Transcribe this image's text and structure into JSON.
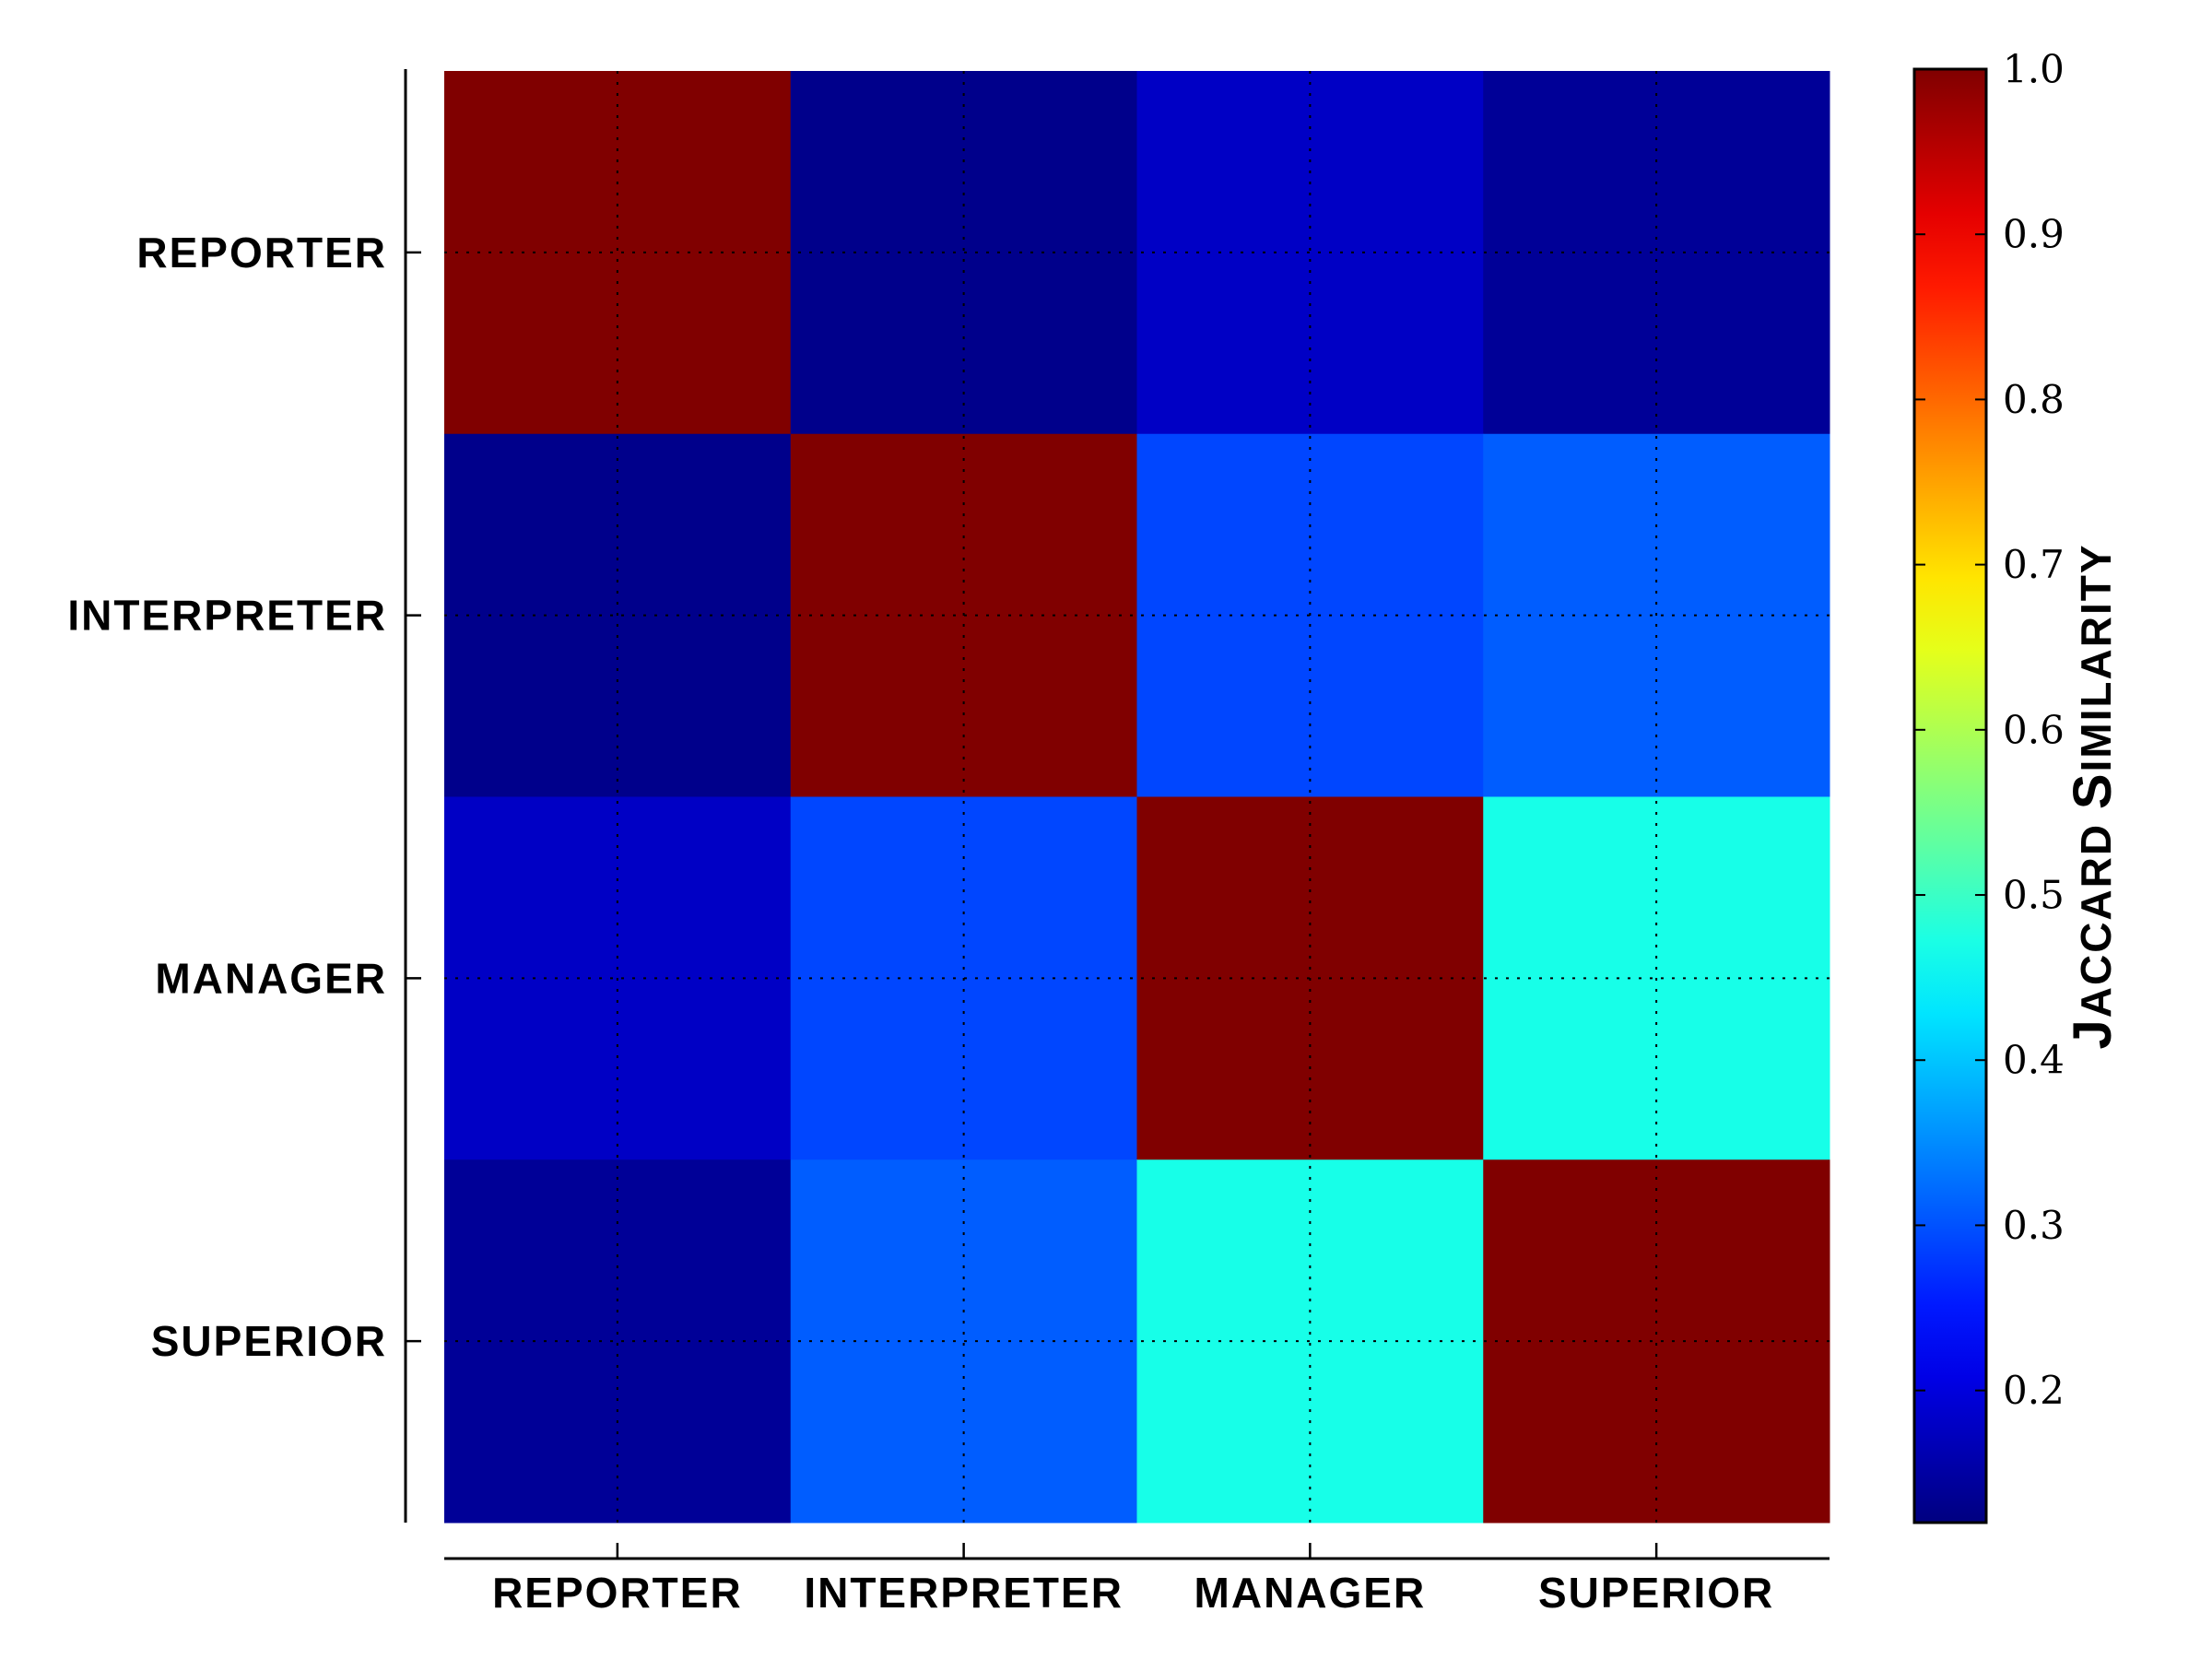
{
  "chart_data": {
    "type": "heatmap",
    "title": "",
    "x_categories": [
      "REPORTER",
      "INTERPRETER",
      "MANAGER",
      "SUPERIOR"
    ],
    "y_categories": [
      "REPORTER",
      "INTERPRETER",
      "MANAGER",
      "SUPERIOR"
    ],
    "values": [
      [
        1.0,
        0.13,
        0.18,
        0.14
      ],
      [
        0.13,
        1.0,
        0.29,
        0.31
      ],
      [
        0.18,
        0.29,
        1.0,
        0.47
      ],
      [
        0.14,
        0.31,
        0.47,
        1.0
      ]
    ],
    "colormap": "jet",
    "colorbar": {
      "label": "Jaccard Similarity",
      "vmin": 0.12,
      "vmax": 1.0,
      "ticks": [
        0.2,
        0.3,
        0.4,
        0.5,
        0.6,
        0.7,
        0.8,
        0.9,
        1.0
      ],
      "tick_labels": [
        "0.2",
        "0.3",
        "0.4",
        "0.5",
        "0.6",
        "0.7",
        "0.8",
        "0.9",
        "1.0"
      ]
    },
    "grid": true,
    "grid_style": "dotted"
  }
}
